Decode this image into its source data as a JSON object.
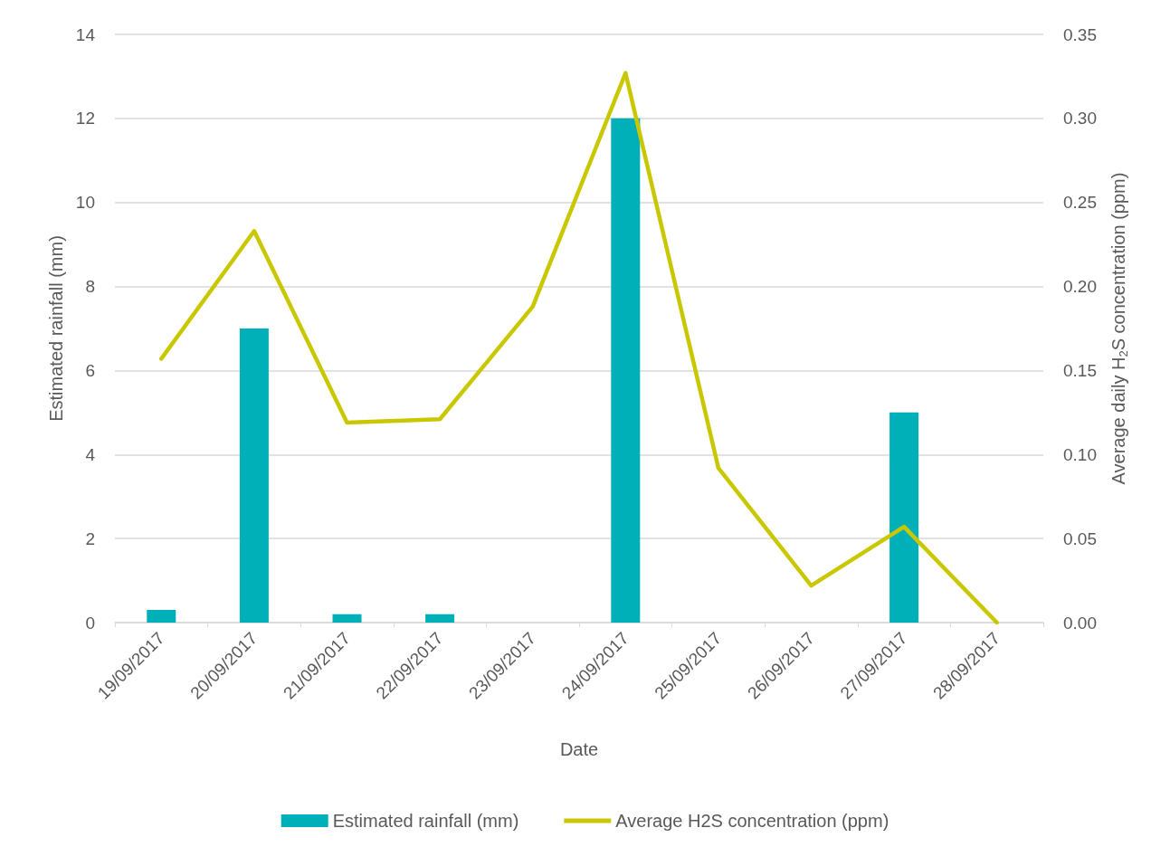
{
  "chart_data": {
    "type": "bar",
    "xlabel": "Date",
    "ylabel": "Estimated rainfall (mm)",
    "y2label": "Average daily H$_{2}$S concentration (ppm)",
    "categories": [
      "19/09/2017",
      "20/09/2017",
      "21/09/2017",
      "22/09/2017",
      "23/09/2017",
      "24/09/2017",
      "25/09/2017",
      "26/09/2017",
      "27/09/2017",
      "28/09/2017"
    ],
    "series": [
      {
        "name": "Estimated rainfall (mm)",
        "color": "#00b0b9",
        "values": [
          0.3,
          7,
          0.2,
          0.2,
          0,
          12,
          0,
          0,
          5,
          0
        ]
      },
      {
        "name": "Average H2S concentration (ppm)",
        "type": "line",
        "axis": "y2",
        "color": "#c9c800",
        "values": [
          0.157,
          0.233,
          0.119,
          0.121,
          0.188,
          0.327,
          0.092,
          0.022,
          0.057,
          0
        ]
      }
    ],
    "ylim": [
      0,
      14
    ],
    "yticks": [
      0,
      2,
      4,
      6,
      8,
      10,
      12,
      14
    ],
    "y2lim": [
      0,
      0.35
    ],
    "y2ticks": [
      {
        "value": 0,
        "label": "0.00"
      },
      {
        "value": 0.05,
        "label": "0.05"
      },
      {
        "value": 0.1,
        "label": "0.10"
      },
      {
        "value": 0.15,
        "label": "0.15"
      },
      {
        "value": 0.2,
        "label": "0.20"
      },
      {
        "value": 0.25,
        "label": "0.25"
      },
      {
        "value": 0.3,
        "label": "0.30"
      },
      {
        "value": 0.35,
        "label": "0.35"
      }
    ],
    "grid": "y",
    "legend": "bottom",
    "marker": "none",
    "line_style": "solid"
  }
}
